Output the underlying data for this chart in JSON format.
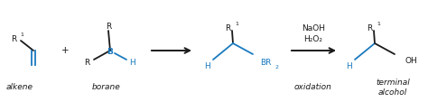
{
  "bg_color": "#ffffff",
  "black": "#1a1a1a",
  "blue": "#1a7abf",
  "fig_width": 4.74,
  "fig_height": 1.14,
  "dpi": 100,
  "fs_main": 6.5,
  "fs_small": 4.5,
  "lw": 1.3,
  "labels": {
    "alkene": "alkene",
    "borane": "borane",
    "oxidation": "oxidation",
    "terminal1": "terminal",
    "terminal2": "alcohol",
    "NaOH": "NaOH",
    "H2O2": "H₂O₂",
    "plus": "+"
  }
}
